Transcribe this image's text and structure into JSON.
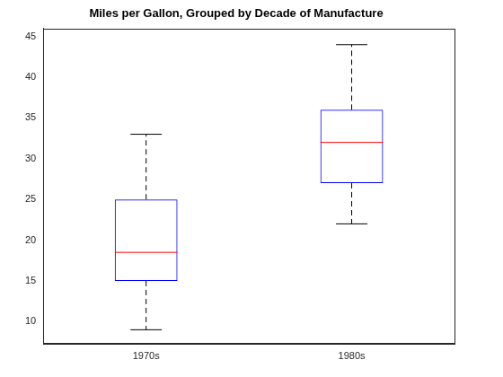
{
  "chart_data": {
    "type": "box",
    "title": "Miles per Gallon, Grouped by Decade of Manufacture",
    "categories": [
      "1970s",
      "1980s"
    ],
    "min": [
      9,
      22
    ],
    "q1": [
      15,
      27
    ],
    "median": [
      18.5,
      32
    ],
    "q3": [
      25,
      36
    ],
    "max": [
      33,
      44
    ],
    "color": "#0000ff",
    "ylim": [
      7.3,
      46
    ],
    "yticks": [
      10,
      15,
      20,
      25,
      30,
      35,
      40,
      45
    ],
    "grid": false
  }
}
